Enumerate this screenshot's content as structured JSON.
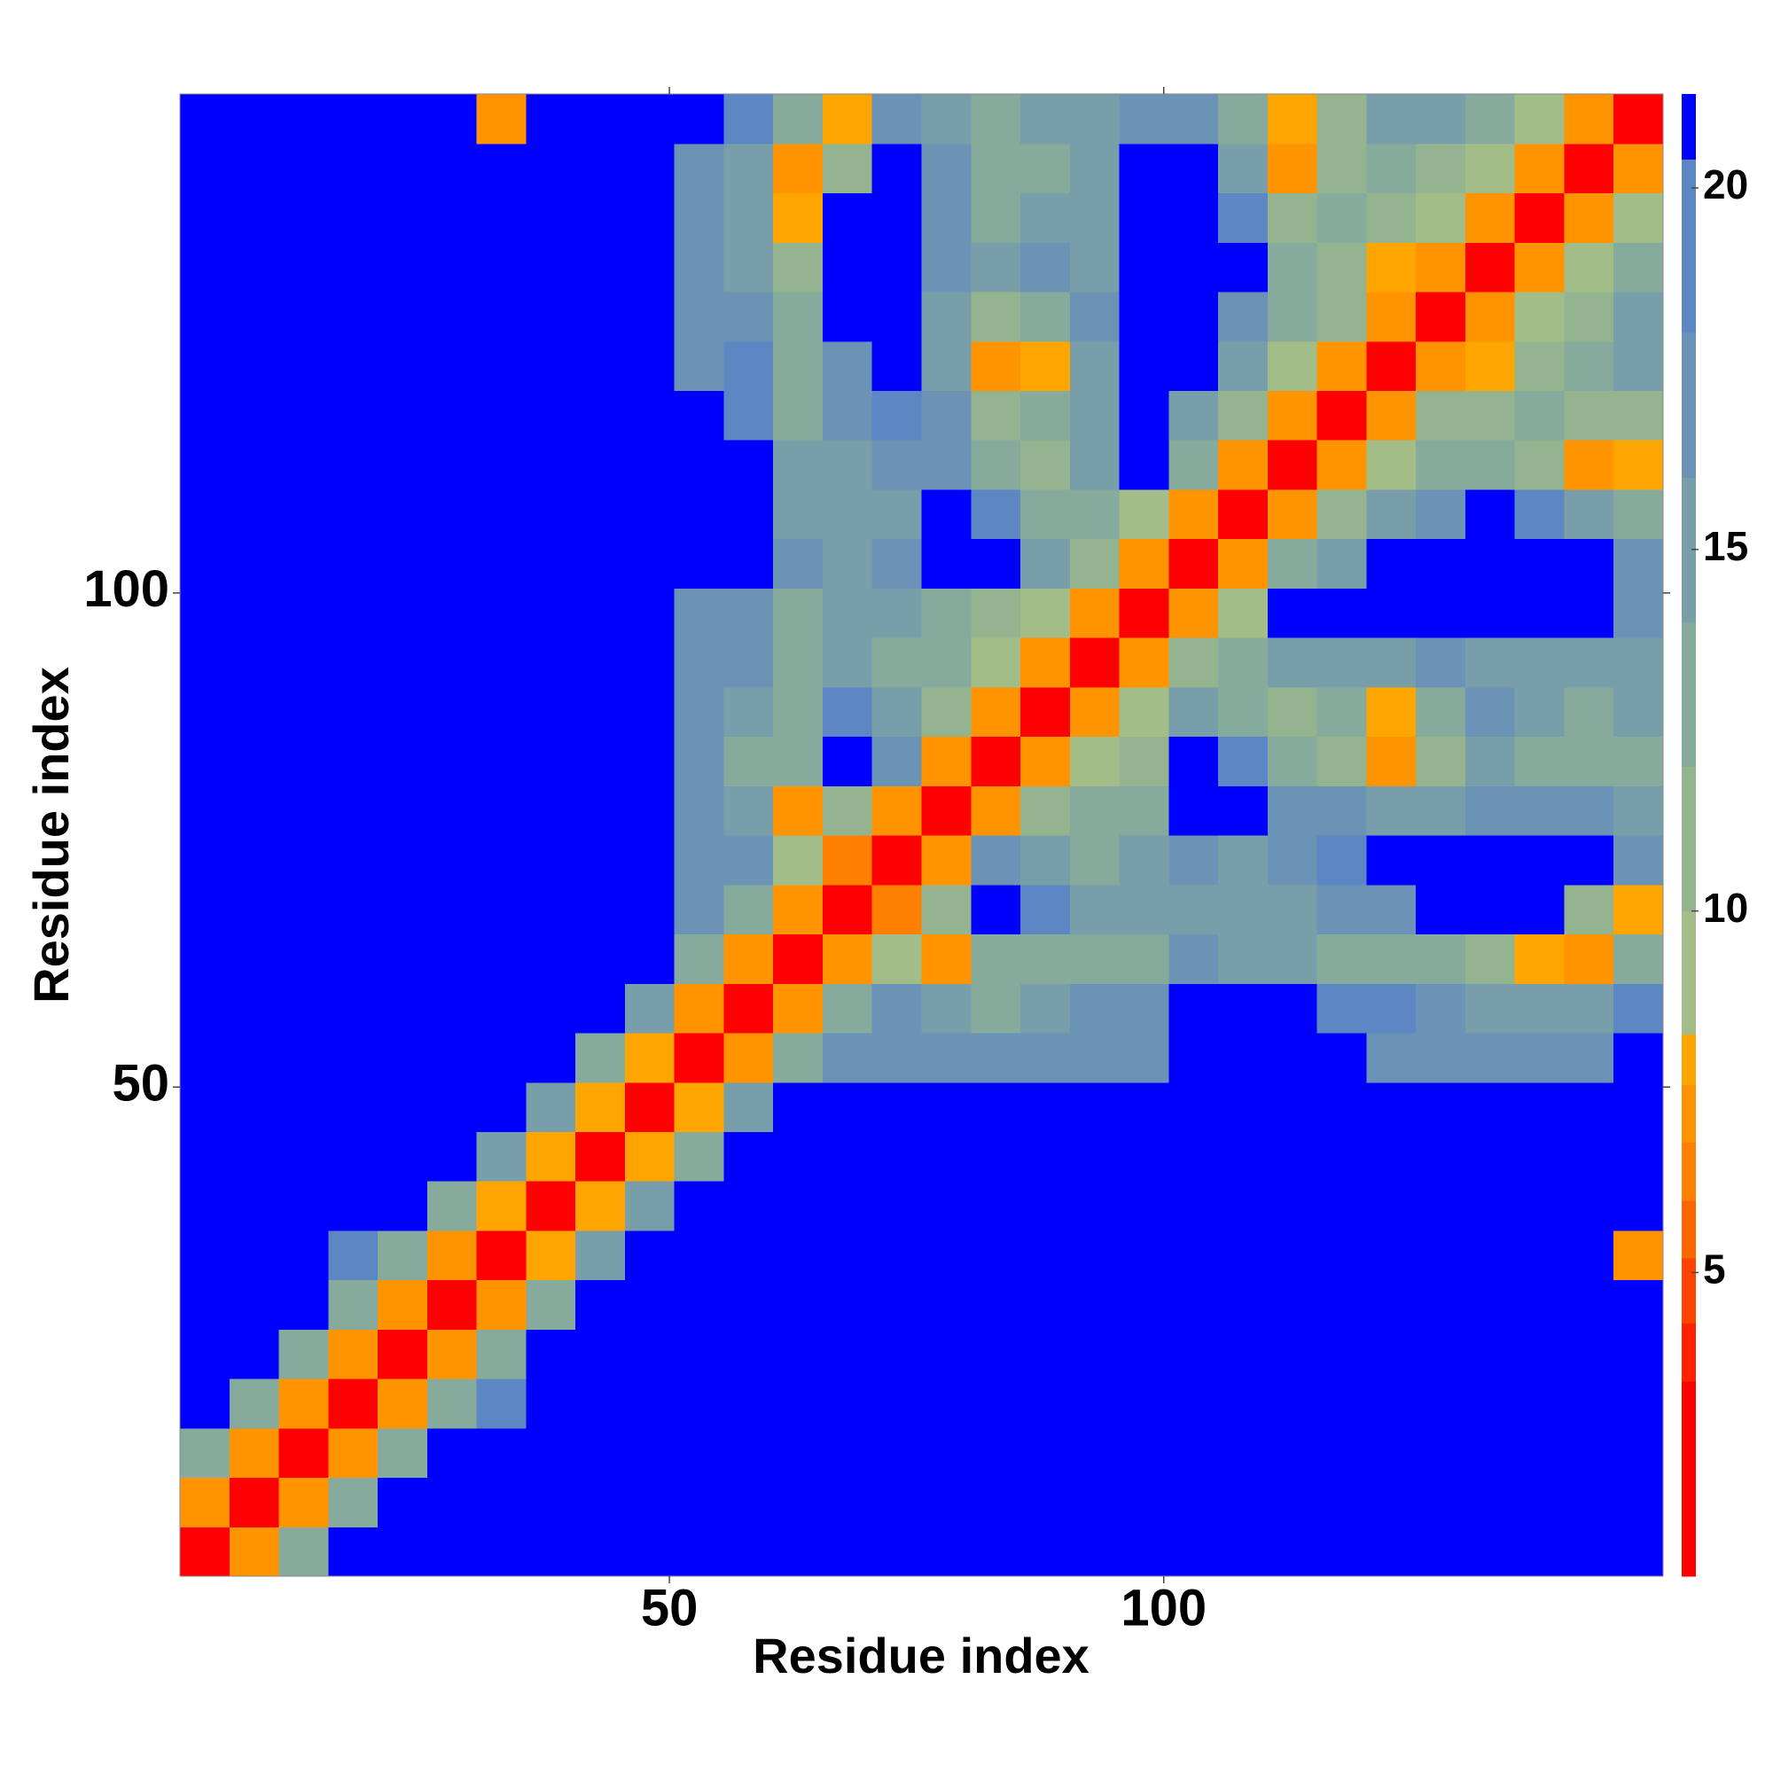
{
  "chart_data": {
    "type": "heatmap",
    "xlabel": "Residue index",
    "ylabel": "Residue index",
    "x": [
      3,
      8,
      13,
      18,
      23,
      28,
      33,
      38,
      43,
      48,
      53,
      58,
      63,
      68,
      73,
      78,
      83,
      88,
      93,
      98,
      103,
      108,
      113,
      118,
      123,
      128,
      133,
      138,
      143,
      148
    ],
    "y": [
      3,
      8,
      13,
      18,
      23,
      28,
      33,
      38,
      43,
      48,
      53,
      58,
      63,
      68,
      73,
      78,
      83,
      88,
      93,
      98,
      103,
      108,
      113,
      118,
      123,
      128,
      133,
      138,
      143,
      148
    ],
    "xlim": [
      0.5,
      150.5
    ],
    "ylim": [
      0.5,
      150.5
    ],
    "xticks": [
      50,
      100
    ],
    "yticks": [
      50,
      100
    ],
    "zlim": [
      0.8,
      21.3
    ],
    "zticks": [
      5,
      10,
      15,
      20
    ],
    "levels": [
      0.8,
      3.5,
      4.3,
      5.2,
      6,
      6.8,
      7.6,
      8.3,
      10,
      12,
      14,
      16,
      18,
      20.4,
      21.3
    ],
    "colors": [
      "#ff0000",
      "#ff2200",
      "#ff4400",
      "#ff6600",
      "#ff8000",
      "#ff9400",
      "#ffa500",
      "#a3bd89",
      "#94b48f",
      "#86aa9c",
      "#789fa9",
      "#6a93b6",
      "#5d87c2",
      "#0000ff"
    ],
    "z": [
      [
        3,
        7,
        12,
        21,
        21,
        21,
        21,
        21,
        21,
        21,
        21,
        21,
        21,
        21,
        21,
        21,
        21,
        21,
        21,
        21,
        21,
        21,
        21,
        21,
        21,
        21,
        21,
        21,
        21,
        21
      ],
      [
        7,
        3,
        7,
        13,
        21,
        21,
        21,
        21,
        21,
        21,
        21,
        21,
        21,
        21,
        21,
        21,
        21,
        21,
        21,
        21,
        21,
        21,
        21,
        21,
        21,
        21,
        21,
        21,
        21,
        21
      ],
      [
        12,
        7,
        3,
        7,
        13,
        21,
        21,
        21,
        21,
        21,
        21,
        21,
        21,
        21,
        21,
        21,
        21,
        21,
        21,
        21,
        21,
        21,
        21,
        21,
        21,
        21,
        21,
        21,
        21,
        21
      ],
      [
        21,
        13,
        7,
        3,
        7,
        12,
        18,
        21,
        21,
        21,
        21,
        21,
        21,
        21,
        21,
        21,
        21,
        21,
        21,
        21,
        21,
        21,
        21,
        21,
        21,
        21,
        21,
        21,
        21,
        21
      ],
      [
        21,
        21,
        13,
        7,
        3,
        7,
        12,
        21,
        21,
        21,
        21,
        21,
        21,
        21,
        21,
        21,
        21,
        21,
        21,
        21,
        21,
        21,
        21,
        21,
        21,
        21,
        21,
        21,
        21,
        21
      ],
      [
        21,
        21,
        21,
        12,
        7,
        3,
        7,
        13,
        21,
        21,
        21,
        21,
        21,
        21,
        21,
        21,
        21,
        21,
        21,
        21,
        21,
        21,
        21,
        21,
        21,
        21,
        21,
        21,
        21,
        21
      ],
      [
        21,
        21,
        21,
        18,
        12,
        7,
        3,
        8,
        14,
        21,
        21,
        21,
        21,
        21,
        21,
        21,
        21,
        21,
        21,
        21,
        21,
        21,
        21,
        21,
        21,
        21,
        21,
        21,
        21,
        7
      ],
      [
        21,
        21,
        21,
        21,
        21,
        13,
        8,
        3,
        8,
        14,
        21,
        21,
        21,
        21,
        21,
        21,
        21,
        21,
        21,
        21,
        21,
        21,
        21,
        21,
        21,
        21,
        21,
        21,
        21,
        21
      ],
      [
        21,
        21,
        21,
        21,
        21,
        21,
        14,
        8,
        3,
        8,
        13,
        21,
        21,
        21,
        21,
        21,
        21,
        21,
        21,
        21,
        21,
        21,
        21,
        21,
        21,
        21,
        21,
        21,
        21,
        21
      ],
      [
        21,
        21,
        21,
        21,
        21,
        21,
        21,
        14,
        8,
        3,
        8,
        14,
        21,
        21,
        21,
        21,
        21,
        21,
        21,
        21,
        21,
        21,
        21,
        21,
        21,
        21,
        21,
        21,
        21,
        21
      ],
      [
        21,
        21,
        21,
        21,
        21,
        21,
        21,
        21,
        13,
        8,
        3,
        7,
        12,
        16,
        16,
        16,
        16,
        16,
        16,
        16,
        21,
        21,
        21,
        21,
        17,
        17,
        17,
        17,
        17,
        21
      ],
      [
        21,
        21,
        21,
        21,
        21,
        21,
        21,
        21,
        21,
        14,
        7,
        3,
        7,
        13,
        16,
        14,
        13,
        15,
        16,
        17,
        21,
        21,
        21,
        20,
        18,
        17,
        15,
        14,
        14,
        18
      ],
      [
        21,
        21,
        21,
        21,
        21,
        21,
        21,
        21,
        21,
        21,
        12,
        7,
        3,
        7,
        9,
        7,
        12,
        13,
        12,
        13,
        16,
        14,
        14,
        13,
        12,
        12,
        11,
        8,
        7,
        13
      ],
      [
        21,
        21,
        21,
        21,
        21,
        21,
        21,
        21,
        21,
        21,
        16,
        13,
        7,
        3,
        6,
        10,
        21,
        18,
        14,
        14,
        14,
        14,
        15,
        16,
        16,
        21,
        21,
        21,
        10,
        8
      ],
      [
        21,
        21,
        21,
        21,
        21,
        21,
        21,
        21,
        21,
        21,
        16,
        16,
        9,
        6,
        3,
        7,
        17,
        14,
        13,
        15,
        16,
        15,
        17,
        18,
        21,
        21,
        21,
        21,
        21,
        16
      ],
      [
        21,
        21,
        21,
        21,
        21,
        21,
        21,
        21,
        21,
        21,
        16,
        14,
        7,
        10,
        7,
        3,
        7,
        10,
        12,
        13,
        21,
        21,
        16,
        16,
        15,
        15,
        17,
        16,
        16,
        14
      ],
      [
        21,
        21,
        21,
        21,
        21,
        21,
        21,
        21,
        21,
        21,
        16,
        13,
        12,
        21,
        17,
        7,
        3,
        7,
        9,
        11,
        21,
        18,
        12,
        11,
        7,
        10,
        14,
        13,
        12,
        13
      ],
      [
        21,
        21,
        21,
        21,
        21,
        21,
        21,
        21,
        21,
        21,
        16,
        15,
        13,
        18,
        14,
        10,
        7,
        3,
        7,
        9,
        14,
        13,
        10,
        12,
        8,
        13,
        16,
        14,
        13,
        14
      ],
      [
        21,
        21,
        21,
        21,
        21,
        21,
        21,
        21,
        21,
        21,
        16,
        16,
        12,
        14,
        13,
        12,
        9,
        7,
        3,
        7,
        11,
        12,
        14,
        15,
        14,
        16,
        15,
        14,
        15,
        14
      ],
      [
        21,
        21,
        21,
        21,
        21,
        21,
        21,
        21,
        21,
        21,
        16,
        17,
        13,
        14,
        15,
        13,
        11,
        9,
        7,
        3,
        7,
        9,
        21,
        21,
        21,
        21,
        21,
        21,
        21,
        16
      ],
      [
        21,
        21,
        21,
        21,
        21,
        21,
        21,
        21,
        21,
        21,
        21,
        21,
        16,
        14,
        16,
        21,
        21,
        14,
        11,
        7,
        3,
        7,
        12,
        15,
        21,
        21,
        21,
        21,
        21,
        17
      ],
      [
        21,
        21,
        21,
        21,
        21,
        21,
        21,
        21,
        21,
        21,
        21,
        21,
        14,
        14,
        15,
        21,
        18,
        13,
        12,
        9,
        7,
        3,
        7,
        10,
        14,
        16,
        21,
        19,
        14,
        12
      ],
      [
        21,
        21,
        21,
        21,
        21,
        21,
        21,
        21,
        21,
        21,
        21,
        21,
        14,
        15,
        17,
        16,
        12,
        10,
        14,
        21,
        12,
        7,
        3,
        7,
        9,
        12,
        13,
        11,
        7,
        8
      ],
      [
        21,
        21,
        21,
        21,
        21,
        21,
        21,
        21,
        21,
        21,
        21,
        20,
        13,
        16,
        18,
        16,
        11,
        12,
        15,
        21,
        15,
        10,
        7,
        3,
        7,
        10,
        11,
        12,
        11,
        10
      ],
      [
        21,
        21,
        21,
        21,
        21,
        21,
        21,
        21,
        21,
        21,
        17,
        18,
        12,
        16,
        21,
        15,
        7,
        8,
        14,
        21,
        21,
        14,
        9,
        7,
        3,
        7,
        8,
        10,
        13,
        14
      ],
      [
        21,
        21,
        21,
        21,
        21,
        21,
        21,
        21,
        21,
        21,
        17,
        17,
        12,
        21,
        21,
        15,
        10,
        13,
        16,
        21,
        21,
        16,
        12,
        10,
        7,
        3,
        7,
        9,
        11,
        14
      ],
      [
        21,
        21,
        21,
        21,
        21,
        21,
        21,
        21,
        21,
        21,
        17,
        15,
        11,
        21,
        21,
        17,
        14,
        16,
        15,
        21,
        21,
        21,
        13,
        11,
        8,
        7,
        3,
        7,
        9,
        13
      ],
      [
        21,
        21,
        21,
        21,
        21,
        21,
        21,
        21,
        21,
        21,
        17,
        14,
        8,
        21,
        21,
        16,
        13,
        14,
        14,
        21,
        21,
        19,
        11,
        12,
        10,
        9,
        7,
        3,
        7,
        9
      ],
      [
        21,
        21,
        21,
        21,
        21,
        21,
        21,
        21,
        21,
        21,
        17,
        14,
        7,
        10,
        21,
        16,
        12,
        13,
        15,
        21,
        21,
        14,
        7,
        11,
        13,
        11,
        9,
        7,
        3,
        7
      ],
      [
        21,
        21,
        21,
        21,
        21,
        21,
        7,
        21,
        21,
        21,
        21,
        18,
        13,
        8,
        16,
        14,
        13,
        14,
        14,
        16,
        17,
        12,
        8,
        10,
        14,
        14,
        13,
        9,
        7,
        3
      ]
    ]
  }
}
